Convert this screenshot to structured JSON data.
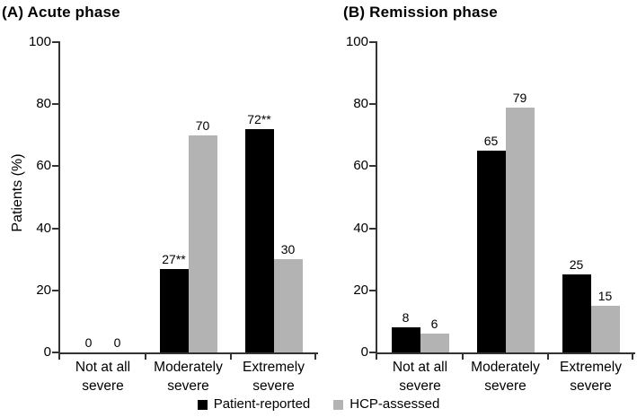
{
  "figure": {
    "legend": {
      "items": [
        {
          "label": "Patient-reported",
          "color": "#000000"
        },
        {
          "label": "HCP-assessed",
          "color": "#b3b3b3"
        }
      ]
    },
    "axis_color": "#333333"
  },
  "chart_data": [
    {
      "type": "bar",
      "title": "(A) Acute phase",
      "categories": [
        "Not at all\nsevere",
        "Moderately\nsevere",
        "Extremely\nsevere"
      ],
      "series": [
        {
          "name": "Patient-reported",
          "color": "#000000",
          "values": [
            0,
            27,
            72
          ],
          "labels": [
            "0",
            "27**",
            "72**"
          ]
        },
        {
          "name": "HCP-assessed",
          "color": "#b3b3b3",
          "values": [
            0,
            70,
            30
          ],
          "labels": [
            "0",
            "70",
            "30"
          ]
        }
      ],
      "xlabel": "",
      "ylabel": "Patients (%)",
      "ylim": [
        0,
        100
      ],
      "yticks": [
        0,
        20,
        40,
        60,
        80,
        100
      ],
      "grid": false,
      "legend_position": "bottom"
    },
    {
      "type": "bar",
      "title": "(B) Remission phase",
      "categories": [
        "Not at all\nsevere",
        "Moderately\nsevere",
        "Extremely\nsevere"
      ],
      "series": [
        {
          "name": "Patient-reported",
          "color": "#000000",
          "values": [
            8,
            65,
            25
          ],
          "labels": [
            "8",
            "65",
            "25"
          ]
        },
        {
          "name": "HCP-assessed",
          "color": "#b3b3b3",
          "values": [
            6,
            79,
            15
          ],
          "labels": [
            "6",
            "79",
            "15"
          ]
        }
      ],
      "xlabel": "",
      "ylabel": "",
      "ylim": [
        0,
        100
      ],
      "yticks": [
        0,
        20,
        40,
        60,
        80,
        100
      ],
      "grid": false,
      "legend_position": "bottom"
    }
  ]
}
